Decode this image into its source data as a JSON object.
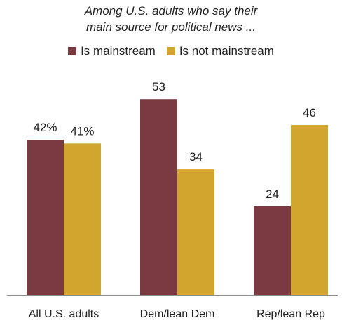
{
  "chart_data": {
    "type": "bar",
    "subtitle_lines": [
      "Among U.S. adults who say their",
      "main source for political news ..."
    ],
    "categories": [
      "All U.S. adults",
      "Dem/lean Dem",
      "Rep/lean Rep"
    ],
    "series": [
      {
        "name": "Is mainstream",
        "color": "#7a3a42",
        "values": [
          42,
          53,
          24
        ],
        "value_labels": [
          "42%",
          "53",
          "24"
        ]
      },
      {
        "name": "Is not mainstream",
        "color": "#d0a62f",
        "values": [
          41,
          34,
          46
        ],
        "value_labels": [
          "41%",
          "34",
          "46"
        ]
      }
    ],
    "ylim": [
      0,
      58
    ],
    "legend_position": "top-center",
    "grid": false
  }
}
